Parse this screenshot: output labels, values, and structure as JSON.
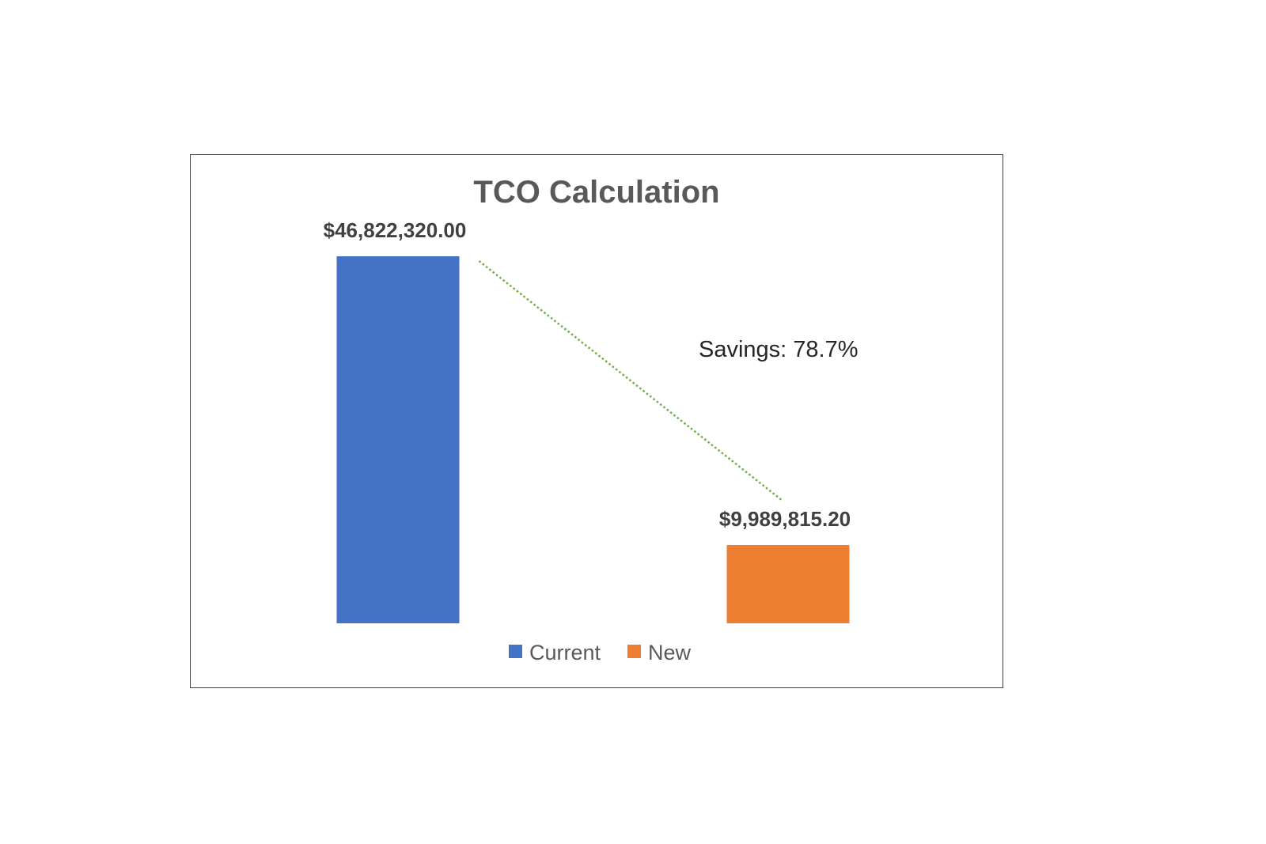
{
  "chart_data": {
    "type": "bar",
    "title": "TCO Calculation",
    "categories": [
      "Current",
      "New"
    ],
    "values": [
      46822320.0,
      9989815.2
    ],
    "value_labels": [
      "$46,822,320.00",
      "$9,989,815.20"
    ],
    "colors": [
      "#4472C4",
      "#ED7D31"
    ],
    "ylim": [
      0,
      46822320.0
    ],
    "legend": {
      "position": "bottom",
      "items": [
        {
          "name": "Current",
          "color": "#4472C4"
        },
        {
          "name": "New",
          "color": "#ED7D31"
        }
      ]
    },
    "annotation": {
      "text": "Savings: 78.7%",
      "connector_color": "#70AD47"
    },
    "grid": false,
    "xlabel": "",
    "ylabel": ""
  }
}
